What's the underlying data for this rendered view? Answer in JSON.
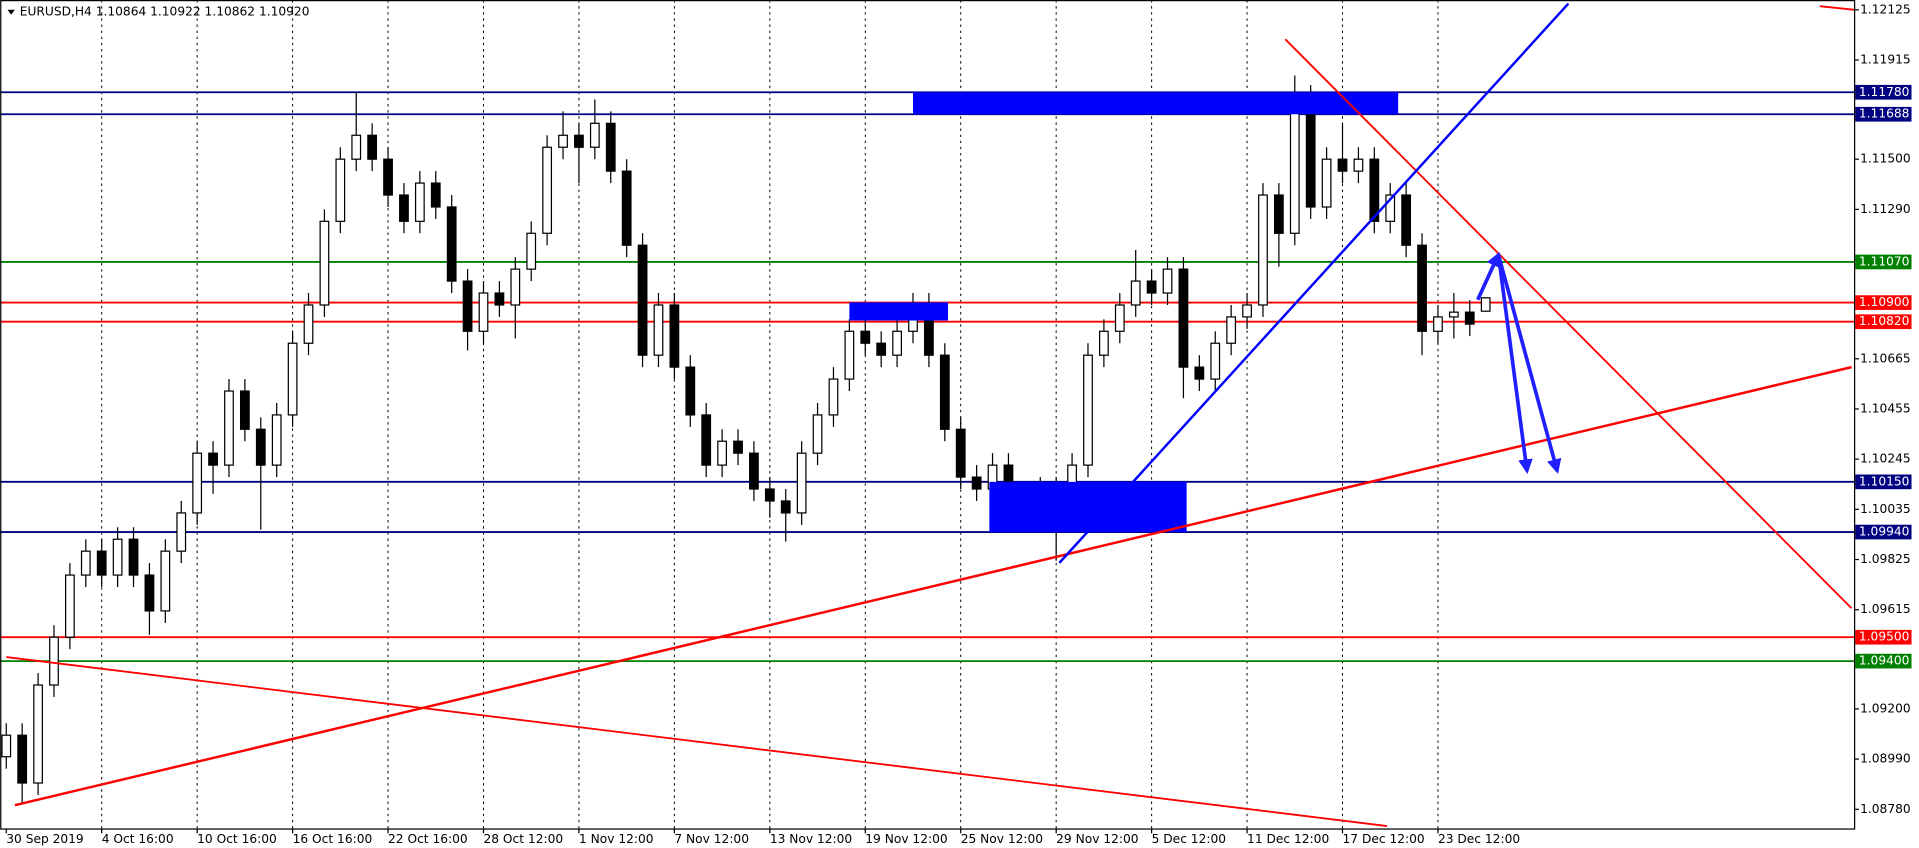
{
  "chart_data": {
    "type": "candlestick",
    "title": "EURUSD,H4  1.10864 1.10922 1.10862 1.10920",
    "up_color": "#ffffff",
    "down_color": "#000000",
    "grid": true,
    "ylim": [
      1.087,
      1.12166
    ],
    "yticks": [
      1.12125,
      1.11915,
      {
        "value": 1.115,
        "label": "1.11500"
      },
      {
        "value": 1.1129,
        "label": "1.11290"
      },
      1.10665,
      1.10455,
      1.10245,
      1.10035,
      1.09825,
      1.09615,
      {
        "value": 1.092,
        "label": "1.09200"
      },
      {
        "value": 1.0899,
        "label": "1.08990"
      },
      {
        "value": 1.0878,
        "label": "1.08780"
      }
    ],
    "xticks": [
      "30 Sep 2019",
      "4 Oct 16:00",
      "10 Oct 16:00",
      "16 Oct 16:00",
      "22 Oct 16:00",
      "28 Oct 12:00",
      "1 Nov 12:00",
      "7 Nov 12:00",
      "13 Nov 12:00",
      "19 Nov 12:00",
      "25 Nov 12:00",
      "29 Nov 12:00",
      "5 Dec 12:00",
      "11 Dec 12:00",
      "17 Dec 12:00",
      "23 Dec 12:00"
    ],
    "ohlc": [
      [
        1.09,
        1.0914,
        1.0895,
        1.0909
      ],
      [
        1.0909,
        1.0914,
        1.088,
        1.0889
      ],
      [
        1.0889,
        1.0935,
        1.0884,
        1.093
      ],
      [
        1.093,
        1.0955,
        1.0925,
        1.095
      ],
      [
        1.095,
        1.0981,
        1.0945,
        1.0976
      ],
      [
        1.0976,
        1.0991,
        1.0971,
        1.0986
      ],
      [
        1.0986,
        1.0991,
        1.0971,
        1.0976
      ],
      [
        1.0976,
        1.0996,
        1.0971,
        1.0991
      ],
      [
        1.0991,
        1.0996,
        1.0971,
        1.0976
      ],
      [
        1.0976,
        1.0981,
        1.0951,
        1.0961
      ],
      [
        1.0961,
        1.0991,
        1.0956,
        1.0986
      ],
      [
        1.0986,
        1.1007,
        1.0981,
        1.1002
      ],
      [
        1.1002,
        1.1032,
        1.0997,
        1.1027
      ],
      [
        1.1027,
        1.1032,
        1.101,
        1.1022
      ],
      [
        1.1022,
        1.1058,
        1.1017,
        1.1053
      ],
      [
        1.1053,
        1.1058,
        1.1032,
        1.1037
      ],
      [
        1.1037,
        1.1042,
        1.0995,
        1.1022
      ],
      [
        1.1022,
        1.1048,
        1.1017,
        1.1043
      ],
      [
        1.1043,
        1.1078,
        1.1038,
        1.1073
      ],
      [
        1.1073,
        1.1094,
        1.1068,
        1.1089
      ],
      [
        1.1089,
        1.1129,
        1.1084,
        1.1124
      ],
      [
        1.1124,
        1.1155,
        1.1119,
        1.115
      ],
      [
        1.115,
        1.1178,
        1.1145,
        1.116
      ],
      [
        1.116,
        1.1165,
        1.1145,
        1.115
      ],
      [
        1.115,
        1.1155,
        1.113,
        1.1135
      ],
      [
        1.1135,
        1.114,
        1.1119,
        1.1124
      ],
      [
        1.1124,
        1.1145,
        1.1119,
        1.114
      ],
      [
        1.114,
        1.1145,
        1.1125,
        1.113
      ],
      [
        1.113,
        1.1135,
        1.1094,
        1.1099
      ],
      [
        1.1099,
        1.1104,
        1.107,
        1.1078
      ],
      [
        1.1078,
        1.1099,
        1.1073,
        1.1094
      ],
      [
        1.1094,
        1.1099,
        1.1084,
        1.1089
      ],
      [
        1.1089,
        1.1109,
        1.1075,
        1.1104
      ],
      [
        1.1104,
        1.1124,
        1.1099,
        1.1119
      ],
      [
        1.1119,
        1.116,
        1.1114,
        1.1155
      ],
      [
        1.1155,
        1.117,
        1.115,
        1.116
      ],
      [
        1.116,
        1.1165,
        1.114,
        1.1155
      ],
      [
        1.1155,
        1.1175,
        1.115,
        1.1165
      ],
      [
        1.1165,
        1.117,
        1.114,
        1.1145
      ],
      [
        1.1145,
        1.115,
        1.1109,
        1.1114
      ],
      [
        1.1114,
        1.1119,
        1.1063,
        1.1068
      ],
      [
        1.1068,
        1.1094,
        1.1063,
        1.1089
      ],
      [
        1.1089,
        1.1094,
        1.1058,
        1.1063
      ],
      [
        1.1063,
        1.1068,
        1.1038,
        1.1043
      ],
      [
        1.1043,
        1.1048,
        1.1017,
        1.1022
      ],
      [
        1.1022,
        1.1037,
        1.1017,
        1.1032
      ],
      [
        1.1032,
        1.1037,
        1.1022,
        1.1027
      ],
      [
        1.1027,
        1.1032,
        1.1007,
        1.1012
      ],
      [
        1.1012,
        1.1017,
        1.1,
        1.1007
      ],
      [
        1.1007,
        1.1012,
        1.099,
        1.1002
      ],
      [
        1.1002,
        1.1032,
        1.0997,
        1.1027
      ],
      [
        1.1027,
        1.1048,
        1.1022,
        1.1043
      ],
      [
        1.1043,
        1.1063,
        1.1038,
        1.1058
      ],
      [
        1.1058,
        1.1083,
        1.1053,
        1.1078
      ],
      [
        1.1078,
        1.1083,
        1.1068,
        1.1073
      ],
      [
        1.1073,
        1.1078,
        1.1063,
        1.1068
      ],
      [
        1.1068,
        1.1083,
        1.1063,
        1.1078
      ],
      [
        1.1078,
        1.1094,
        1.1073,
        1.1089
      ],
      [
        1.1089,
        1.1094,
        1.1063,
        1.1068
      ],
      [
        1.1068,
        1.1073,
        1.1032,
        1.1037
      ],
      [
        1.1037,
        1.1042,
        1.1012,
        1.1017
      ],
      [
        1.1017,
        1.1022,
        1.1007,
        1.1012
      ],
      [
        1.1012,
        1.1027,
        1.1007,
        1.1022
      ],
      [
        1.1022,
        1.1027,
        1.0997,
        1.1002
      ],
      [
        1.1002,
        1.1012,
        1.0997,
        1.1007
      ],
      [
        1.1007,
        1.1017,
        1.1002,
        1.1012
      ],
      [
        1.1012,
        1.1017,
        1.0982,
        1.0999
      ],
      [
        1.0999,
        1.1027,
        1.0994,
        1.1022
      ],
      [
        1.1022,
        1.1073,
        1.1017,
        1.1068
      ],
      [
        1.1068,
        1.1083,
        1.1063,
        1.1078
      ],
      [
        1.1078,
        1.1094,
        1.1073,
        1.1089
      ],
      [
        1.1089,
        1.1112,
        1.1084,
        1.1099
      ],
      [
        1.1099,
        1.1104,
        1.1089,
        1.1094
      ],
      [
        1.1094,
        1.1109,
        1.1089,
        1.1104
      ],
      [
        1.1104,
        1.1109,
        1.105,
        1.1063
      ],
      [
        1.1063,
        1.1068,
        1.1053,
        1.1058
      ],
      [
        1.1058,
        1.1078,
        1.1053,
        1.1073
      ],
      [
        1.1073,
        1.1089,
        1.1068,
        1.1084
      ],
      [
        1.1084,
        1.1094,
        1.1079,
        1.1089
      ],
      [
        1.1089,
        1.114,
        1.1084,
        1.1135
      ],
      [
        1.1135,
        1.114,
        1.1105,
        1.1119
      ],
      [
        1.1119,
        1.1185,
        1.1114,
        1.1176
      ],
      [
        1.1176,
        1.1181,
        1.1125,
        1.113
      ],
      [
        1.113,
        1.1155,
        1.1125,
        1.115
      ],
      [
        1.115,
        1.1165,
        1.114,
        1.1145
      ],
      [
        1.1145,
        1.1155,
        1.114,
        1.115
      ],
      [
        1.115,
        1.1155,
        1.1119,
        1.1124
      ],
      [
        1.1124,
        1.114,
        1.1119,
        1.1135
      ],
      [
        1.1135,
        1.114,
        1.1109,
        1.1114
      ],
      [
        1.1114,
        1.1119,
        1.1068,
        1.1078
      ],
      [
        1.1078,
        1.1089,
        1.1073,
        1.1084
      ],
      [
        1.1084,
        1.1094,
        1.1075,
        1.1086
      ],
      [
        1.1086,
        1.1091,
        1.1076,
        1.1081
      ],
      [
        1.10864,
        1.10922,
        1.10862,
        1.1092
      ]
    ],
    "levels": [
      {
        "value": 1.1178,
        "label": "1.11780",
        "color": "#000080"
      },
      {
        "value": 1.11688,
        "label": "1.11688",
        "color": "#000080"
      },
      {
        "value": 1.1107,
        "label": "1.11070",
        "color": "#008000"
      },
      {
        "value": 1.109,
        "label": "1.10900",
        "color": "#ff0000"
      },
      {
        "value": 1.1082,
        "label": "1.10820",
        "color": "#ff0000"
      },
      {
        "value": 1.1015,
        "label": "1.10150",
        "color": "#000080"
      },
      {
        "value": 1.0994,
        "label": "1.09940",
        "color": "#000080"
      },
      {
        "value": 1.095,
        "label": "1.09500",
        "color": "#ff0000"
      },
      {
        "value": 1.094,
        "label": "1.09400",
        "color": "#008000"
      }
    ],
    "zones": [
      {
        "x": [
          57,
          87.5
        ],
        "y": [
          1.1178,
          1.11688
        ],
        "color": "#0000ff"
      },
      {
        "x": [
          53,
          59.2
        ],
        "y": [
          1.10901,
          1.10825
        ],
        "color": "#0000ff"
      },
      {
        "x": [
          61.8,
          74.2
        ],
        "y": [
          1.1015,
          1.0994
        ],
        "color": "#0000ff"
      }
    ],
    "lines": [
      {
        "x": [
          0.54,
          116
        ],
        "y": [
          1.08797,
          1.1063
        ],
        "color": "#ff0000",
        "width": 2
      },
      {
        "x": [
          0,
          86.8
        ],
        "y": [
          1.09417,
          1.0871
        ],
        "color": "#ff0000",
        "width": 1.5
      },
      {
        "x": [
          80.4,
          116
        ],
        "y": [
          1.12002,
          1.09621
        ],
        "color": "#ff0000",
        "width": 1.5
      },
      {
        "x": [
          114,
          116.2
        ],
        "y": [
          1.1214,
          1.12125
        ],
        "color": "#ff0000",
        "width": 1.5
      },
      {
        "x": [
          66.2,
          98.2
        ],
        "y": [
          1.09811,
          1.12151
        ],
        "color": "#0000ff",
        "width": 2
      }
    ],
    "arrows": [
      {
        "x": [
          92.5,
          93.8
        ],
        "y": [
          1.10912,
          1.11101
        ],
        "color": "#1f1fff"
      },
      {
        "x": [
          93.8,
          95.6
        ],
        "y": [
          1.11101,
          1.10195
        ],
        "color": "#1f1fff"
      },
      {
        "x": [
          93.8,
          97.5
        ],
        "y": [
          1.11101,
          1.10195
        ],
        "color": "#1f1fff"
      }
    ]
  }
}
